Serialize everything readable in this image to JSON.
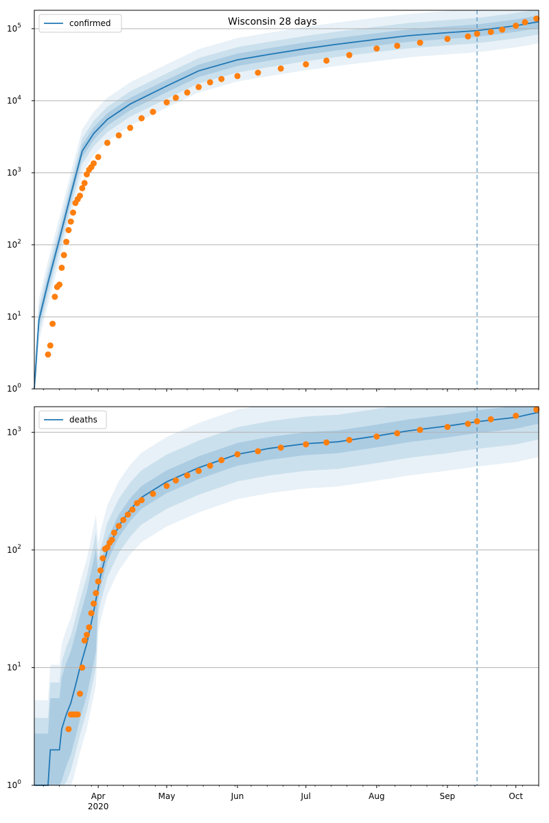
{
  "colors": {
    "model_line": "#1f77b4",
    "band": "#1f77b4",
    "observed": "#ff7f0e",
    "grid": "#b0b0b0",
    "forecast_line": "#1f77b4"
  },
  "chart_data": [
    {
      "type": "line",
      "title": "Wisconsin 28 days",
      "yscale": "log",
      "ylim": [
        1,
        180000
      ],
      "ytick_values": [
        1,
        10,
        100,
        1000,
        10000,
        100000
      ],
      "yticks": [
        {
          "base": "10",
          "exp": "0"
        },
        {
          "base": "10",
          "exp": "1"
        },
        {
          "base": "10",
          "exp": "2"
        },
        {
          "base": "10",
          "exp": "3"
        },
        {
          "base": "10",
          "exp": "4"
        },
        {
          "base": "10",
          "exp": "5"
        }
      ],
      "xlim": [
        "2020-03-04",
        "2020-10-11"
      ],
      "xticks": [],
      "grid": "y",
      "legend": "top-left",
      "forecast_start": "2020-09-14",
      "legend_label": "confirmed",
      "model": {
        "name": "confirmed",
        "x": [
          "2020-03-04",
          "2020-03-06",
          "2020-03-10",
          "2020-03-15",
          "2020-03-20",
          "2020-03-25",
          "2020-03-30",
          "2020-04-05",
          "2020-04-15",
          "2020-05-01",
          "2020-05-15",
          "2020-06-01",
          "2020-06-15",
          "2020-07-01",
          "2020-07-15",
          "2020-08-01",
          "2020-08-15",
          "2020-09-01",
          "2020-09-14",
          "2020-10-01",
          "2020-10-11"
        ],
        "y": [
          1,
          9,
          30,
          120,
          500,
          2000,
          3500,
          5500,
          9000,
          16000,
          26000,
          37000,
          44000,
          53000,
          61000,
          71000,
          80000,
          88000,
          94000,
          110000,
          125000
        ]
      },
      "observed": {
        "x": [
          "2020-03-10",
          "2020-03-11",
          "2020-03-12",
          "2020-03-13",
          "2020-03-14",
          "2020-03-15",
          "2020-03-16",
          "2020-03-17",
          "2020-03-18",
          "2020-03-19",
          "2020-03-20",
          "2020-03-21",
          "2020-03-22",
          "2020-03-23",
          "2020-03-24",
          "2020-03-25",
          "2020-03-26",
          "2020-03-27",
          "2020-03-28",
          "2020-03-29",
          "2020-03-30",
          "2020-04-01",
          "2020-04-05",
          "2020-04-10",
          "2020-04-15",
          "2020-04-20",
          "2020-04-25",
          "2020-05-01",
          "2020-05-05",
          "2020-05-10",
          "2020-05-15",
          "2020-05-20",
          "2020-05-25",
          "2020-06-01",
          "2020-06-10",
          "2020-06-20",
          "2020-07-01",
          "2020-07-10",
          "2020-07-20",
          "2020-08-01",
          "2020-08-10",
          "2020-08-20",
          "2020-09-01",
          "2020-09-10",
          "2020-09-14",
          "2020-09-20",
          "2020-09-25",
          "2020-10-01",
          "2020-10-05",
          "2020-10-10"
        ],
        "y": [
          3,
          4,
          8,
          19,
          26,
          28,
          48,
          72,
          110,
          160,
          210,
          280,
          380,
          430,
          480,
          610,
          720,
          950,
          1100,
          1200,
          1350,
          1650,
          2600,
          3300,
          4200,
          5700,
          7000,
          9500,
          11000,
          13000,
          15500,
          18000,
          20000,
          22000,
          24500,
          28000,
          32000,
          36000,
          43000,
          53000,
          58000,
          64000,
          72000,
          78000,
          85000,
          90000,
          97000,
          110000,
          123000,
          138000
        ]
      }
    },
    {
      "type": "line",
      "title": "",
      "yscale": "log",
      "ylim": [
        1,
        1650
      ],
      "ytick_values": [
        1,
        10,
        100,
        1000
      ],
      "yticks": [
        {
          "base": "10",
          "exp": "0"
        },
        {
          "base": "10",
          "exp": "1"
        },
        {
          "base": "10",
          "exp": "2"
        },
        {
          "base": "10",
          "exp": "3"
        }
      ],
      "xlim": [
        "2020-03-04",
        "2020-10-11"
      ],
      "xticks": [
        {
          "date": "2020-04-01",
          "label": "Apr",
          "sub": "2020"
        },
        {
          "date": "2020-05-01",
          "label": "May",
          "sub": ""
        },
        {
          "date": "2020-06-01",
          "label": "Jun",
          "sub": ""
        },
        {
          "date": "2020-07-01",
          "label": "Jul",
          "sub": ""
        },
        {
          "date": "2020-08-01",
          "label": "Aug",
          "sub": ""
        },
        {
          "date": "2020-09-01",
          "label": "Sep",
          "sub": ""
        },
        {
          "date": "2020-10-01",
          "label": "Oct",
          "sub": ""
        }
      ],
      "grid": "y",
      "legend": "top-left",
      "forecast_start": "2020-09-14",
      "legend_label": "deaths",
      "model": {
        "name": "deaths",
        "x": [
          "2020-03-04",
          "2020-03-10",
          "2020-03-11",
          "2020-03-15",
          "2020-03-16",
          "2020-03-18",
          "2020-03-20",
          "2020-03-22",
          "2020-03-24",
          "2020-03-27",
          "2020-03-30",
          "2020-04-02",
          "2020-04-05",
          "2020-04-10",
          "2020-04-15",
          "2020-04-20",
          "2020-05-01",
          "2020-05-15",
          "2020-06-01",
          "2020-06-15",
          "2020-07-01",
          "2020-07-15",
          "2020-08-01",
          "2020-08-15",
          "2020-09-01",
          "2020-09-14",
          "2020-10-01",
          "2020-10-11"
        ],
        "y": [
          1,
          1,
          2,
          2,
          3,
          4,
          5,
          7,
          10,
          16,
          30,
          60,
          100,
          160,
          220,
          280,
          380,
          500,
          650,
          730,
          800,
          830,
          930,
          1030,
          1130,
          1230,
          1340,
          1480
        ]
      },
      "observed": {
        "x": [
          "2020-03-19",
          "2020-03-20",
          "2020-03-21",
          "2020-03-22",
          "2020-03-23",
          "2020-03-24",
          "2020-03-25",
          "2020-03-26",
          "2020-03-27",
          "2020-03-28",
          "2020-03-29",
          "2020-03-30",
          "2020-03-31",
          "2020-04-01",
          "2020-04-02",
          "2020-04-03",
          "2020-04-04",
          "2020-04-05",
          "2020-04-06",
          "2020-04-07",
          "2020-04-08",
          "2020-04-10",
          "2020-04-12",
          "2020-04-14",
          "2020-04-16",
          "2020-04-18",
          "2020-04-20",
          "2020-04-25",
          "2020-05-01",
          "2020-05-05",
          "2020-05-10",
          "2020-05-15",
          "2020-05-20",
          "2020-05-25",
          "2020-06-01",
          "2020-06-10",
          "2020-06-20",
          "2020-07-01",
          "2020-07-10",
          "2020-07-20",
          "2020-08-01",
          "2020-08-10",
          "2020-08-20",
          "2020-09-01",
          "2020-09-10",
          "2020-09-14",
          "2020-09-20",
          "2020-10-01",
          "2020-10-10"
        ],
        "y": [
          3,
          4,
          4,
          4,
          4,
          6,
          10,
          17,
          19,
          22,
          29,
          35,
          43,
          54,
          67,
          85,
          102,
          105,
          115,
          122,
          140,
          160,
          180,
          200,
          220,
          250,
          265,
          300,
          350,
          390,
          430,
          470,
          520,
          580,
          650,
          690,
          740,
          790,
          820,
          860,
          920,
          980,
          1050,
          1110,
          1180,
          1240,
          1290,
          1380,
          1560
        ]
      }
    }
  ]
}
